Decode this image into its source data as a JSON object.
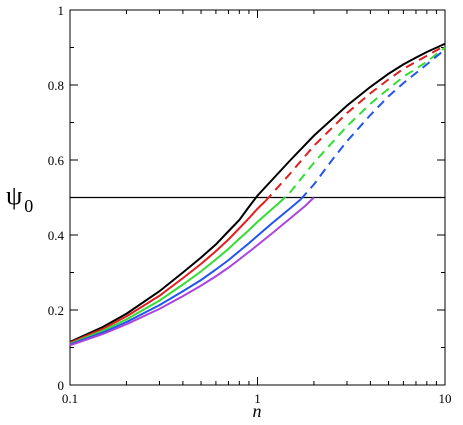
{
  "chart_data": {
    "type": "line",
    "xlabel": "n",
    "ylabel": "ψ",
    "ylabel_subscript": "0",
    "x_scale": "log",
    "xlim": [
      0.1,
      10
    ],
    "ylim": [
      0,
      1
    ],
    "x_ticks": [
      0.1,
      1,
      10
    ],
    "x_tick_labels": [
      "0.1",
      "1",
      "10"
    ],
    "y_ticks": [
      0,
      0.2,
      0.4,
      0.6,
      0.8,
      1
    ],
    "y_tick_labels": [
      "0",
      "0.2",
      "0.4",
      "0.6",
      "0.8",
      "1"
    ],
    "grid": false,
    "reference_line": {
      "y": 0.5,
      "color": "#000000"
    },
    "series": [
      {
        "color": "#000000",
        "solid": [
          [
            0.1,
            0.115
          ],
          [
            0.15,
            0.155
          ],
          [
            0.2,
            0.19
          ],
          [
            0.3,
            0.25
          ],
          [
            0.4,
            0.3
          ],
          [
            0.5,
            0.34
          ],
          [
            0.6,
            0.375
          ],
          [
            0.7,
            0.41
          ],
          [
            0.8,
            0.44
          ],
          [
            0.9,
            0.475
          ],
          [
            1.0,
            0.505
          ],
          [
            1.5,
            0.6
          ],
          [
            2,
            0.665
          ],
          [
            3,
            0.745
          ],
          [
            4,
            0.795
          ],
          [
            5,
            0.83
          ],
          [
            6,
            0.855
          ],
          [
            7,
            0.873
          ],
          [
            8,
            0.888
          ],
          [
            10,
            0.91
          ]
        ],
        "dashed": []
      },
      {
        "color": "#e02020",
        "solid": [
          [
            0.1,
            0.113
          ],
          [
            0.15,
            0.15
          ],
          [
            0.2,
            0.183
          ],
          [
            0.3,
            0.238
          ],
          [
            0.4,
            0.285
          ],
          [
            0.5,
            0.323
          ],
          [
            0.6,
            0.357
          ],
          [
            0.7,
            0.388
          ],
          [
            0.8,
            0.418
          ],
          [
            0.9,
            0.445
          ],
          [
            1.0,
            0.47
          ],
          [
            1.1,
            0.49
          ]
        ],
        "dashed": [
          [
            1.1,
            0.49
          ],
          [
            1.5,
            0.565
          ],
          [
            2,
            0.638
          ],
          [
            3,
            0.725
          ],
          [
            4,
            0.778
          ],
          [
            5,
            0.815
          ],
          [
            6,
            0.843
          ],
          [
            8,
            0.878
          ],
          [
            10,
            0.905
          ]
        ]
      },
      {
        "color": "#33dd33",
        "solid": [
          [
            0.1,
            0.11
          ],
          [
            0.15,
            0.145
          ],
          [
            0.2,
            0.175
          ],
          [
            0.3,
            0.225
          ],
          [
            0.4,
            0.268
          ],
          [
            0.5,
            0.303
          ],
          [
            0.6,
            0.335
          ],
          [
            0.7,
            0.363
          ],
          [
            0.8,
            0.39
          ],
          [
            0.9,
            0.413
          ],
          [
            1.0,
            0.435
          ],
          [
            1.2,
            0.47
          ],
          [
            1.3,
            0.485
          ]
        ],
        "dashed": [
          [
            1.3,
            0.485
          ],
          [
            1.5,
            0.515
          ],
          [
            2,
            0.593
          ],
          [
            3,
            0.69
          ],
          [
            4,
            0.75
          ],
          [
            5,
            0.79
          ],
          [
            6,
            0.822
          ],
          [
            8,
            0.862
          ],
          [
            10,
            0.9
          ]
        ]
      },
      {
        "color": "#2255ee",
        "solid": [
          [
            0.1,
            0.108
          ],
          [
            0.15,
            0.14
          ],
          [
            0.2,
            0.168
          ],
          [
            0.3,
            0.213
          ],
          [
            0.4,
            0.25
          ],
          [
            0.5,
            0.28
          ],
          [
            0.6,
            0.308
          ],
          [
            0.7,
            0.333
          ],
          [
            0.8,
            0.357
          ],
          [
            0.9,
            0.378
          ],
          [
            1.0,
            0.398
          ],
          [
            1.2,
            0.432
          ],
          [
            1.5,
            0.472
          ],
          [
            1.7,
            0.495
          ]
        ],
        "dashed": [
          [
            1.7,
            0.495
          ],
          [
            2,
            0.535
          ],
          [
            2.5,
            0.6
          ],
          [
            3,
            0.65
          ],
          [
            4,
            0.72
          ],
          [
            5,
            0.77
          ],
          [
            6,
            0.805
          ],
          [
            8,
            0.855
          ],
          [
            10,
            0.895
          ]
        ]
      },
      {
        "color": "#aa44dd",
        "solid": [
          [
            0.1,
            0.106
          ],
          [
            0.15,
            0.136
          ],
          [
            0.2,
            0.162
          ],
          [
            0.3,
            0.203
          ],
          [
            0.4,
            0.237
          ],
          [
            0.5,
            0.265
          ],
          [
            0.6,
            0.29
          ],
          [
            0.7,
            0.313
          ],
          [
            0.8,
            0.335
          ],
          [
            0.9,
            0.355
          ],
          [
            1.0,
            0.373
          ],
          [
            1.2,
            0.405
          ],
          [
            1.5,
            0.445
          ],
          [
            1.8,
            0.478
          ],
          [
            2.0,
            0.5
          ]
        ],
        "dashed": []
      }
    ]
  }
}
